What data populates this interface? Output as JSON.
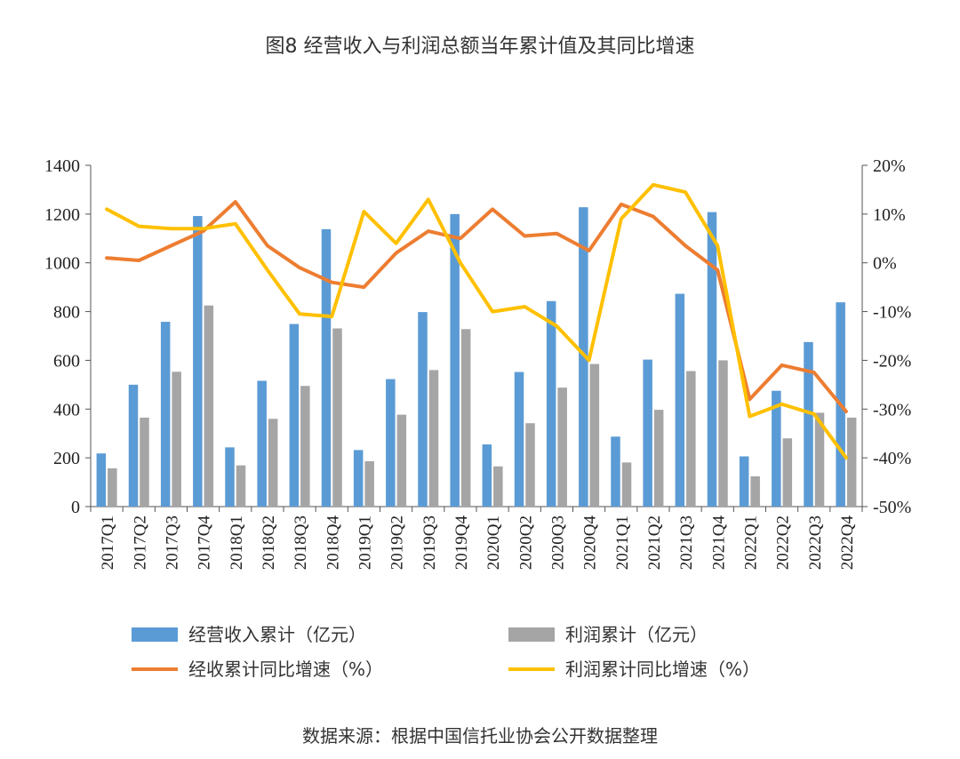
{
  "title": "图8 经营收入与利润总额当年累计值及其同比增速",
  "source": "数据来源：根据中国信托业协会公开数据整理",
  "colors": {
    "revenue": "#5b9bd5",
    "profit": "#a5a5a5",
    "revenue_growth": "#ed7d31",
    "profit_growth": "#ffc000"
  },
  "chart_data": {
    "type": "bar",
    "categories": [
      "2017Q1",
      "2017Q2",
      "2017Q3",
      "2017Q4",
      "2018Q1",
      "2018Q2",
      "2018Q3",
      "2018Q4",
      "2019Q1",
      "2019Q2",
      "2019Q3",
      "2019Q4",
      "2020Q1",
      "2020Q2",
      "2020Q3",
      "2020Q4",
      "2021Q1",
      "2021Q2",
      "2021Q3",
      "2021Q4",
      "2022Q1",
      "2022Q2",
      "2022Q3",
      "2022Q4"
    ],
    "left_axis": {
      "min": 0,
      "max": 1400,
      "ticks": [
        0,
        200,
        400,
        600,
        800,
        1000,
        1200,
        1400
      ]
    },
    "right_axis": {
      "min": -50,
      "max": 20,
      "ticks": [
        "20%",
        "10%",
        "0%",
        "-10%",
        "-20%",
        "-30%",
        "-40%",
        "-50%"
      ]
    },
    "grid": false,
    "legend_position": "bottom",
    "series": [
      {
        "name": "经营收入累计（亿元）",
        "type": "bar",
        "axis": "left",
        "values": [
          218,
          500,
          758,
          1192,
          243,
          516,
          749,
          1138,
          232,
          523,
          798,
          1200,
          255,
          552,
          843,
          1228,
          287,
          603,
          873,
          1208,
          206,
          475,
          675,
          838
        ]
      },
      {
        "name": "利润累计（亿元）",
        "type": "bar",
        "axis": "left",
        "values": [
          157,
          365,
          553,
          825,
          169,
          360,
          495,
          731,
          186,
          377,
          560,
          728,
          165,
          342,
          488,
          585,
          181,
          397,
          556,
          600,
          124,
          280,
          385,
          365
        ]
      },
      {
        "name": "经收累计同比增速（%）",
        "type": "line",
        "axis": "right",
        "values": [
          1.0,
          0.5,
          3.5,
          6.5,
          12.5,
          3.5,
          -1.0,
          -4.0,
          -5.0,
          2.0,
          6.5,
          5.0,
          11.0,
          5.5,
          6.0,
          2.5,
          12.0,
          9.5,
          3.5,
          -1.5,
          -28.0,
          -21.0,
          -22.5,
          -30.5
        ]
      },
      {
        "name": "利润累计同比增速（%）",
        "type": "line",
        "axis": "right",
        "values": [
          11.0,
          7.5,
          7.0,
          7.0,
          8.0,
          -1.5,
          -10.5,
          -11.0,
          10.5,
          4.0,
          13.0,
          0.0,
          -10.0,
          -9.0,
          -13.0,
          -20.0,
          9.0,
          16.0,
          14.5,
          3.5,
          -31.5,
          -29.0,
          -31.0,
          -40.0
        ]
      }
    ]
  }
}
